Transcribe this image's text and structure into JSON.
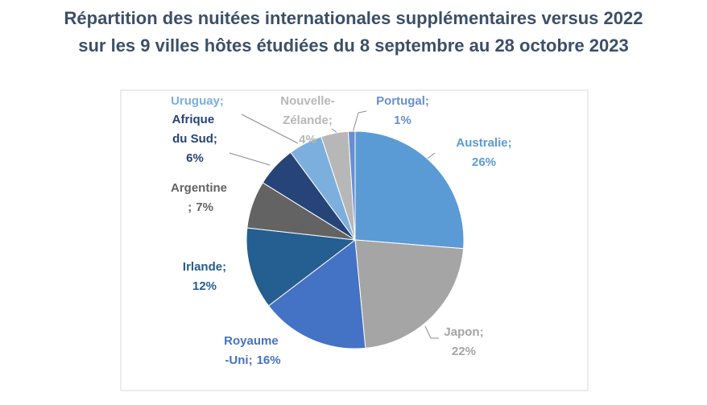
{
  "chart_data": {
    "type": "pie",
    "title": [
      "Répartition des nuitées internationales supplémentaires versus 2022",
      "sur les 9 villes hôtes étudiées du 8 septembre au 28 octobre 2023"
    ],
    "categories": [
      "Australie;",
      "Japon;",
      "Royaume -Uni;",
      "Irlande;",
      "Argentine ;",
      "Afrique du Sud;",
      "Uruguay;",
      "Nouvelle-Zélande;",
      "Portugal;"
    ],
    "values": [
      26,
      22,
      16,
      12,
      7,
      6,
      5,
      4,
      1
    ],
    "value_labels": [
      "26%",
      "22%",
      "16%",
      "12%",
      "7%",
      "6%",
      null,
      "4%",
      "1%"
    ],
    "colors": [
      "#5b9bd5",
      "#a5a5a5",
      "#4472c4",
      "#255e91",
      "#636363",
      "#264478",
      "#7cafdd",
      "#b7b7b7",
      "#698ed0"
    ]
  }
}
